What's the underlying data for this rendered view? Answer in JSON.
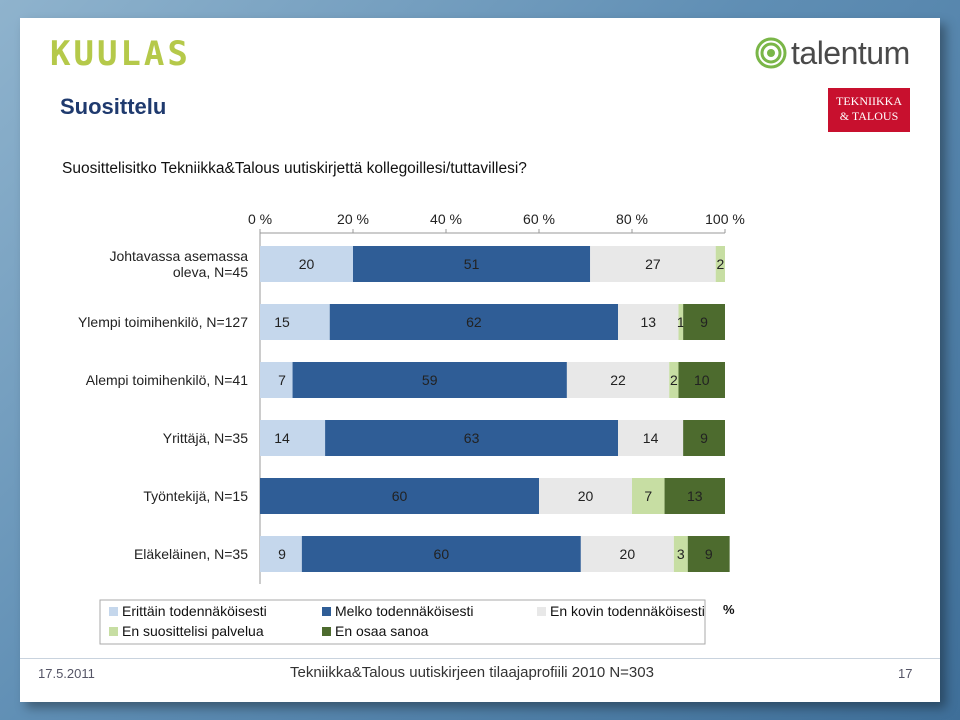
{
  "header": {
    "logo_left_text": "KUULAS",
    "logo_right_text": "talentum",
    "logo_badge_line1": "TEKNIIKKA",
    "logo_badge_line2": "& TALOUS"
  },
  "slide": {
    "title": "Suosittelu",
    "question": "Suosittelisitko Tekniikka&Talous uutiskirjettä kollegoillesi/tuttavillesi?"
  },
  "colors": {
    "erittain": "#c5d7ec",
    "melko": "#2f5d96",
    "en_kovin": "#e8e8e8",
    "en_suosittelisi": "#c7dea3",
    "en_osaa": "#4d6b2e"
  },
  "chart_data": {
    "type": "bar",
    "orientation": "horizontal-stacked-100",
    "xlim": [
      0,
      100
    ],
    "x_ticks": [
      "0 %",
      "20 %",
      "40 %",
      "60 %",
      "80 %",
      "100 %"
    ],
    "unit_label": "%",
    "categories": [
      "Johtavassa asemassa oleva, N=45",
      "Ylempi toimihenkilö, N=127",
      "Alempi toimihenkilö, N=41",
      "Yrittäjä, N=35",
      "Työntekijä, N=15",
      "Eläkeläinen, N=35"
    ],
    "series": [
      {
        "name": "Erittäin todennäköisesti",
        "color_key": "erittain",
        "values": [
          20,
          15,
          7,
          14,
          0,
          9
        ]
      },
      {
        "name": "Melko todennäköisesti",
        "color_key": "melko",
        "values": [
          51,
          62,
          59,
          63,
          60,
          60
        ]
      },
      {
        "name": "En kovin todennäköisesti",
        "color_key": "en_kovin",
        "values": [
          27,
          13,
          22,
          14,
          20,
          20
        ]
      },
      {
        "name": "En suosittelisi palvelua",
        "color_key": "en_suosittelisi",
        "values": [
          2,
          1,
          2,
          0,
          7,
          3
        ]
      },
      {
        "name": "En osaa sanoa",
        "color_key": "en_osaa",
        "values": [
          0,
          9,
          10,
          9,
          13,
          9
        ]
      }
    ],
    "legend_position": "bottom"
  },
  "footer": {
    "date": "17.5.2011",
    "source": "Tekniikka&Talous uutiskirjeen tilaajaprofiili 2010 N=303",
    "page": "17"
  }
}
